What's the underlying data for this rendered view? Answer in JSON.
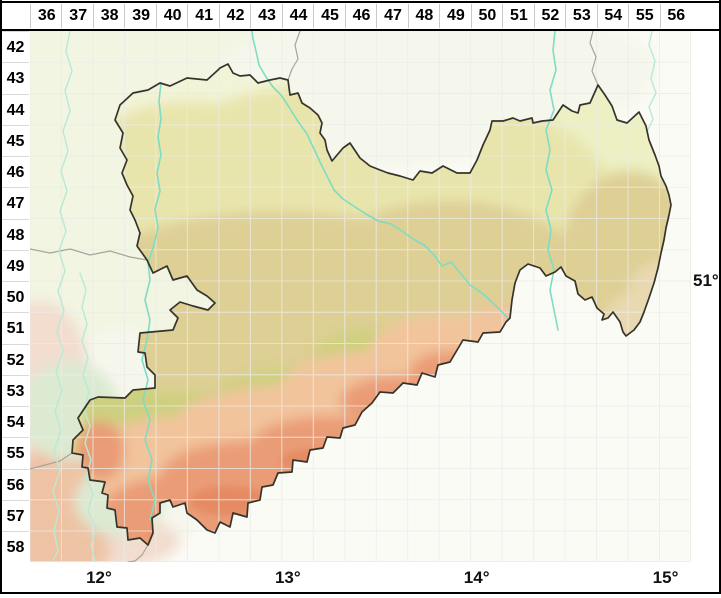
{
  "grid": {
    "column_labels": [
      "36",
      "37",
      "38",
      "39",
      "40",
      "41",
      "42",
      "43",
      "44",
      "45",
      "46",
      "47",
      "48",
      "49",
      "50",
      "51",
      "52",
      "53",
      "54",
      "55",
      "56"
    ],
    "row_labels": [
      "42",
      "43",
      "44",
      "45",
      "46",
      "47",
      "48",
      "49",
      "50",
      "51",
      "52",
      "53",
      "54",
      "55",
      "56",
      "57",
      "58"
    ]
  },
  "axis_labels": {
    "longitude": [
      {
        "text": "12°",
        "boundary_index": 2
      },
      {
        "text": "13°",
        "boundary_index": 8
      },
      {
        "text": "14°",
        "boundary_index": 14
      },
      {
        "text": "15°",
        "boundary_index": 20
      }
    ],
    "latitude": [
      {
        "text": "51°",
        "boundary_index": 8
      }
    ]
  },
  "colors": {
    "frame": "#000000",
    "map_background": "#fbfbf6",
    "outside_tint_green": "#f1f5e2",
    "outside_tint_cream": "#f6f7ec",
    "outside_pink": "#f2ddcf",
    "outside_salmon": "#eec3a4",
    "outside_green_patch": "#dcead2",
    "saxony_lowland": "#ecf0c3",
    "saxony_light": "#f2f4d8",
    "saxony_mid": "#e8e5ac",
    "saxony_tan": "#decf95",
    "saxony_olive": "#cdd07f",
    "east_tan": "#e9d9b0",
    "salmon_light": "#f2c49c",
    "salmon": "#ea9c76",
    "salmon_dark": "#e4885f",
    "river": "#7fdcc3",
    "outside_river": "#b9e9d6",
    "state_border": "#a6a59c",
    "saxony_border": "#35332a",
    "grid_line_white": "#ffffff",
    "grid_line_grey": "#d9d9d3"
  }
}
